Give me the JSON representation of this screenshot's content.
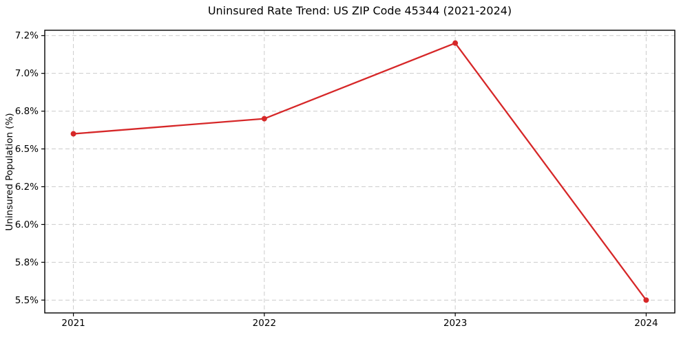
{
  "chart_data": {
    "type": "line",
    "title": "Uninsured Rate Trend: US ZIP Code 45344 (2021-2024)",
    "xlabel": "",
    "ylabel": "Uninsured Population (%)",
    "x": [
      2021,
      2022,
      2023,
      2024
    ],
    "values": [
      6.6,
      6.7,
      7.2,
      5.5
    ],
    "x_tick_labels": [
      "2021",
      "2022",
      "2023",
      "2024"
    ],
    "y_ticks": [
      5.5,
      5.75,
      6.0,
      6.25,
      6.5,
      6.75,
      7.0,
      7.25
    ],
    "y_tick_labels": [
      "5.5%",
      "5.8%",
      "6.0%",
      "6.2%",
      "6.5%",
      "6.8%",
      "7.0%",
      "7.2%"
    ],
    "xlim": [
      2020.85,
      2024.15
    ],
    "ylim": [
      5.415,
      7.285
    ],
    "grid": true,
    "legend": "none",
    "line_color": "#d62728",
    "marker": "circle",
    "grid_color": "#cccccc",
    "spine_color": "#000000",
    "background_color": "#ffffff"
  }
}
